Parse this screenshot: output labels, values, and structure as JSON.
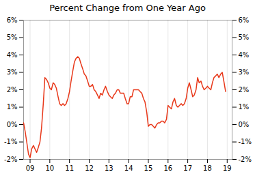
{
  "chart_data": {
    "type": "line",
    "title": "Percent Change from One Year Ago",
    "color": "#e8381a",
    "grid": "x",
    "xlim": [
      2008.67,
      2019.25
    ],
    "ylim": [
      -2,
      6
    ],
    "xticks": [
      {
        "value": 2009,
        "label": "09"
      },
      {
        "value": 2010,
        "label": "10"
      },
      {
        "value": 2011,
        "label": "11"
      },
      {
        "value": 2012,
        "label": "12"
      },
      {
        "value": 2013,
        "label": "13"
      },
      {
        "value": 2014,
        "label": "14"
      },
      {
        "value": 2015,
        "label": "15"
      },
      {
        "value": 2016,
        "label": "16"
      },
      {
        "value": 2017,
        "label": "17"
      },
      {
        "value": 2018,
        "label": "18"
      },
      {
        "value": 2019,
        "label": "19"
      }
    ],
    "yticks": [
      {
        "value": -2,
        "label": "-2%"
      },
      {
        "value": -1,
        "label": "-1%"
      },
      {
        "value": 0,
        "label": "0%"
      },
      {
        "value": 1,
        "label": "1%"
      },
      {
        "value": 2,
        "label": "2%"
      },
      {
        "value": 3,
        "label": "3%"
      },
      {
        "value": 4,
        "label": "4%"
      },
      {
        "value": 5,
        "label": "5%"
      },
      {
        "value": 6,
        "label": "6%"
      }
    ],
    "x": [
      2008.67,
      2008.75,
      2008.83,
      2008.92,
      2009.0,
      2009.08,
      2009.17,
      2009.25,
      2009.33,
      2009.42,
      2009.5,
      2009.58,
      2009.67,
      2009.75,
      2009.83,
      2009.92,
      2010.0,
      2010.08,
      2010.17,
      2010.25,
      2010.33,
      2010.42,
      2010.5,
      2010.58,
      2010.67,
      2010.75,
      2010.83,
      2010.92,
      2011.0,
      2011.08,
      2011.17,
      2011.25,
      2011.33,
      2011.42,
      2011.5,
      2011.58,
      2011.67,
      2011.75,
      2011.83,
      2011.92,
      2012.0,
      2012.08,
      2012.17,
      2012.25,
      2012.33,
      2012.42,
      2012.5,
      2012.58,
      2012.67,
      2012.75,
      2012.83,
      2012.92,
      2013.0,
      2013.08,
      2013.17,
      2013.25,
      2013.33,
      2013.42,
      2013.5,
      2013.58,
      2013.67,
      2013.75,
      2013.83,
      2013.92,
      2014.0,
      2014.08,
      2014.17,
      2014.25,
      2014.33,
      2014.42,
      2014.5,
      2014.58,
      2014.67,
      2014.75,
      2014.83,
      2014.92,
      2015.0,
      2015.08,
      2015.17,
      2015.25,
      2015.33,
      2015.42,
      2015.5,
      2015.58,
      2015.67,
      2015.75,
      2015.83,
      2015.92,
      2016.0,
      2016.08,
      2016.17,
      2016.25,
      2016.33,
      2016.42,
      2016.5,
      2016.58,
      2016.67,
      2016.75,
      2016.83,
      2016.92,
      2017.0,
      2017.08,
      2017.17,
      2017.25,
      2017.33,
      2017.42,
      2017.5,
      2017.58,
      2017.67,
      2017.75,
      2017.83,
      2017.92,
      2018.0,
      2018.08,
      2018.17,
      2018.25,
      2018.33,
      2018.42,
      2018.5,
      2018.58,
      2018.67,
      2018.75,
      2018.83,
      2018.92
    ],
    "values": [
      0.1,
      -0.4,
      -1.0,
      -1.7,
      -1.9,
      -1.4,
      -1.2,
      -1.4,
      -1.6,
      -1.3,
      -1.0,
      -0.2,
      1.2,
      2.7,
      2.6,
      2.4,
      2.1,
      2.0,
      2.4,
      2.3,
      2.1,
      1.6,
      1.2,
      1.1,
      1.2,
      1.1,
      1.2,
      1.5,
      1.9,
      2.5,
      3.1,
      3.6,
      3.8,
      3.9,
      3.8,
      3.5,
      3.2,
      2.9,
      2.8,
      2.5,
      2.2,
      2.2,
      2.3,
      2.0,
      1.9,
      1.7,
      1.5,
      1.8,
      1.7,
      2.0,
      2.2,
      1.9,
      1.7,
      1.6,
      1.5,
      1.7,
      1.8,
      2.0,
      2.0,
      1.8,
      1.8,
      1.8,
      1.5,
      1.2,
      1.2,
      1.6,
      1.6,
      2.0,
      2.0,
      2.0,
      2.0,
      1.9,
      1.8,
      1.5,
      1.3,
      0.7,
      -0.1,
      0.0,
      0.0,
      -0.1,
      -0.2,
      0.0,
      0.1,
      0.1,
      0.2,
      0.2,
      0.1,
      0.3,
      1.1,
      1.0,
      0.9,
      1.3,
      1.5,
      1.1,
      1.0,
      1.1,
      1.2,
      1.1,
      1.2,
      1.5,
      2.1,
      2.4,
      2.0,
      1.6,
      1.7,
      2.0,
      2.7,
      2.4,
      2.5,
      2.2,
      2.0,
      2.1,
      2.2,
      2.1,
      2.0,
      2.4,
      2.7,
      2.8,
      2.9,
      2.7,
      2.9,
      3.0,
      2.5,
      1.9
    ]
  }
}
